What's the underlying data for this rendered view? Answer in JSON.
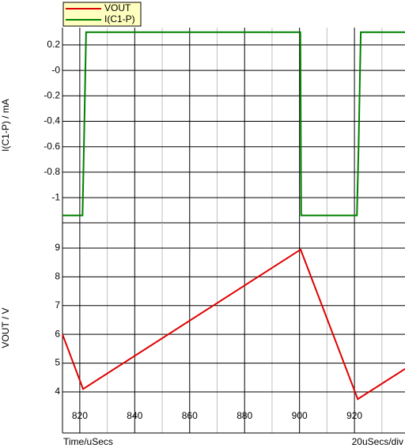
{
  "chart_data": [
    {
      "type": "line",
      "y_label": "I(C1-P) / mA",
      "xlim": [
        813.7,
        938.4
      ],
      "x_minor_ticks": [
        830,
        850,
        870,
        890,
        910,
        930
      ],
      "xticks": [
        820,
        840,
        860,
        880,
        900,
        920
      ],
      "ylim": [
        -1.198,
        0.336
      ],
      "yticks": [
        0.2,
        {
          "value": 0,
          "label": "-0"
        },
        -0.2,
        -0.4,
        -0.6,
        -0.8,
        -1
      ],
      "grid": true,
      "x": [
        813.7,
        821,
        821.5,
        822.3,
        900.3,
        900.6,
        920.9,
        921.5,
        922.3,
        938.4
      ],
      "series": [
        {
          "name": "I(C1-P)",
          "color": "#008000",
          "values": [
            -1.14,
            -1.14,
            -0.6,
            0.3,
            0.3,
            -1.14,
            -1.14,
            -0.6,
            0.3,
            0.3
          ]
        }
      ]
    },
    {
      "type": "line",
      "y_label": "VOUT / V",
      "x_label": "Time/uSecs",
      "x_scale_label": "20uSecs/div",
      "xlim": [
        813.7,
        938.4
      ],
      "x_minor_ticks": [
        830,
        850,
        870,
        890,
        910,
        930
      ],
      "xticks": [
        820,
        840,
        860,
        880,
        900,
        920
      ],
      "ylim": [
        2.57,
        9.88
      ],
      "yticks": [
        9,
        8,
        7,
        6,
        5,
        4
      ],
      "grid": true,
      "x": [
        813.7,
        821.2,
        900.4,
        921.2,
        938.4
      ],
      "series": [
        {
          "name": "VOUT",
          "color": "#e00000",
          "values": [
            6.0,
            4.1,
            8.95,
            3.75,
            4.8
          ]
        }
      ]
    }
  ]
}
